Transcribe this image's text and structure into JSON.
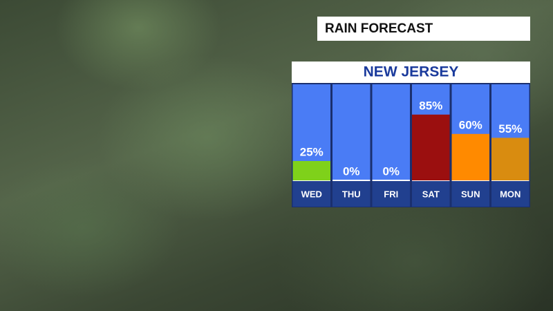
{
  "chart_data": {
    "type": "bar",
    "title": "RAIN FORECAST",
    "subtitle": "NEW JERSEY",
    "categories": [
      "WED",
      "THU",
      "FRI",
      "SAT",
      "SUN",
      "MON"
    ],
    "values": [
      25,
      0,
      0,
      85,
      60,
      55
    ],
    "value_labels": [
      "25%",
      "0%",
      "0%",
      "85%",
      "60%",
      "55%"
    ],
    "colors": [
      "#7fd11a",
      "#7fd11a",
      "#7fd11a",
      "#9b0f0f",
      "#ff8a00",
      "#d98c10"
    ],
    "ylim": [
      0,
      100
    ]
  }
}
